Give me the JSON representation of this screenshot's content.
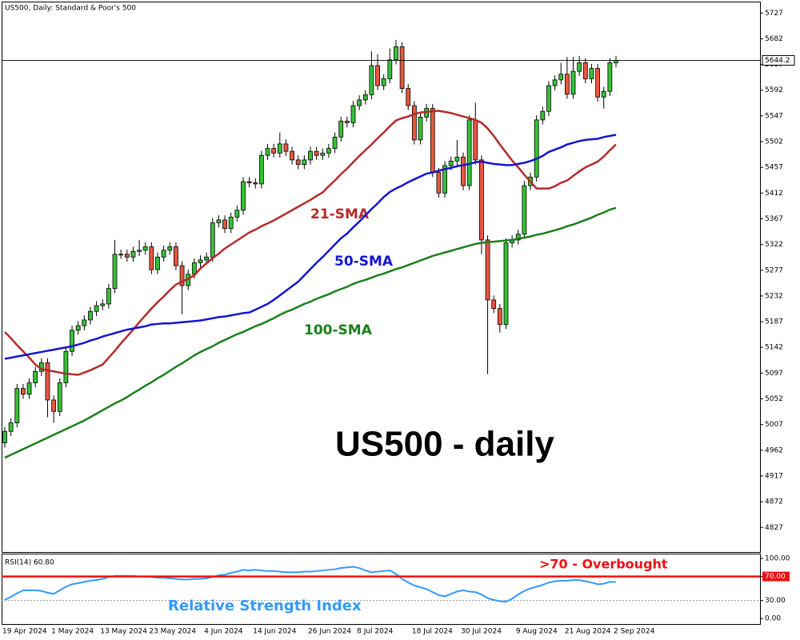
{
  "chart_data": [
    {
      "type": "candlestick",
      "title": "US500, Daily:  Standard & Poor's 500",
      "annotation": "US500 - daily",
      "categories": [
        "19 Apr 2024",
        null,
        null,
        null,
        null,
        null,
        null,
        null,
        "1 May 2024",
        null,
        null,
        null,
        null,
        null,
        null,
        null,
        "13 May 2024",
        null,
        null,
        null,
        null,
        null,
        null,
        null,
        "23 May 2024",
        null,
        null,
        null,
        null,
        null,
        null,
        null,
        null,
        "4 Jun 2024",
        null,
        null,
        null,
        null,
        null,
        null,
        null,
        "14 Jun 2024",
        null,
        null,
        null,
        null,
        null,
        null,
        null,
        null,
        "26 Jun 2024",
        null,
        null,
        null,
        null,
        null,
        null,
        null,
        "8 Jul 2024",
        null,
        null,
        null,
        null,
        null,
        null,
        null,
        null,
        "18 Jul 2024",
        null,
        null,
        null,
        null,
        null,
        null,
        null,
        "30 Jul 2024",
        null,
        null,
        null,
        null,
        null,
        null,
        null,
        null,
        "9 Aug 2024",
        null,
        null,
        null,
        null,
        null,
        null,
        null,
        "21 Aug 2024",
        null,
        null,
        null,
        null,
        null,
        null,
        null,
        "2 Sep 2024"
      ],
      "open": [
        4975,
        4995,
        5010,
        5070,
        5060,
        5080,
        5100,
        5115,
        5050,
        5030,
        5080,
        5135,
        5172,
        5180,
        5190,
        5205,
        5215,
        5218,
        5245,
        5305,
        5305,
        5300,
        5310,
        5312,
        5318,
        5278,
        5300,
        5312,
        5318,
        5285,
        5250,
        5270,
        5290,
        5295,
        5300,
        5360,
        5365,
        5350,
        5370,
        5382,
        5432,
        5430,
        5428,
        5478,
        5490,
        5482,
        5498,
        5485,
        5470,
        5462,
        5470,
        5485,
        5478,
        5482,
        5490,
        5510,
        5538,
        5535,
        5565,
        5575,
        5584,
        5635,
        5600,
        5612,
        5645,
        5668,
        5595,
        5565,
        5505,
        5545,
        5560,
        5448,
        5412,
        5460,
        5468,
        5475,
        5425,
        5540,
        5470,
        5330,
        5225,
        5210,
        5182,
        5325,
        5330,
        5340,
        5425,
        5440,
        5540,
        5555,
        5600,
        5610,
        5620,
        5585,
        5625,
        5640,
        5612,
        5630,
        5580,
        5590,
        5640
      ],
      "high": [
        5003,
        5018,
        5078,
        5078,
        5088,
        5108,
        5123,
        5123,
        5058,
        5088,
        5143,
        5180,
        5188,
        5198,
        5213,
        5223,
        5226,
        5253,
        5330,
        5313,
        5313,
        5318,
        5330,
        5326,
        5326,
        5308,
        5320,
        5326,
        5326,
        5293,
        5278,
        5298,
        5303,
        5308,
        5368,
        5373,
        5373,
        5378,
        5390,
        5440,
        5440,
        5438,
        5486,
        5498,
        5498,
        5518,
        5506,
        5493,
        5478,
        5478,
        5493,
        5493,
        5490,
        5498,
        5518,
        5546,
        5546,
        5573,
        5583,
        5592,
        5660,
        5655,
        5620,
        5665,
        5680,
        5676,
        5603,
        5573,
        5553,
        5568,
        5568,
        5456,
        5468,
        5476,
        5505,
        5483,
        5548,
        5570,
        5478,
        5338,
        5233,
        5218,
        5333,
        5338,
        5348,
        5433,
        5448,
        5548,
        5563,
        5608,
        5618,
        5640,
        5650,
        5650,
        5652,
        5648,
        5638,
        5638,
        5598,
        5648,
        5652
      ],
      "low": [
        4967,
        4987,
        5002,
        5052,
        5052,
        5072,
        5092,
        5020,
        5010,
        5022,
        5072,
        5127,
        5164,
        5172,
        5182,
        5197,
        5207,
        5210,
        5237,
        5297,
        5292,
        5292,
        5302,
        5304,
        5270,
        5270,
        5292,
        5304,
        5277,
        5200,
        5242,
        5262,
        5282,
        5287,
        5292,
        5352,
        5342,
        5342,
        5362,
        5374,
        5422,
        5420,
        5420,
        5470,
        5474,
        5474,
        5477,
        5462,
        5454,
        5454,
        5462,
        5470,
        5470,
        5474,
        5482,
        5502,
        5527,
        5527,
        5557,
        5567,
        5576,
        5592,
        5592,
        5604,
        5637,
        5587,
        5557,
        5497,
        5497,
        5537,
        5440,
        5404,
        5404,
        5452,
        5460,
        5417,
        5417,
        5462,
        5305,
        5095,
        5202,
        5168,
        5174,
        5317,
        5322,
        5332,
        5417,
        5432,
        5532,
        5547,
        5592,
        5602,
        5577,
        5577,
        5617,
        5604,
        5604,
        5572,
        5560,
        5582,
        5632
      ],
      "close": [
        4995,
        5010,
        5070,
        5060,
        5080,
        5100,
        5115,
        5050,
        5030,
        5080,
        5135,
        5172,
        5180,
        5190,
        5205,
        5215,
        5218,
        5245,
        5305,
        5305,
        5300,
        5310,
        5312,
        5318,
        5278,
        5300,
        5312,
        5318,
        5285,
        5250,
        5270,
        5290,
        5295,
        5300,
        5360,
        5365,
        5350,
        5370,
        5382,
        5432,
        5430,
        5428,
        5478,
        5490,
        5482,
        5498,
        5485,
        5470,
        5462,
        5470,
        5485,
        5478,
        5482,
        5490,
        5510,
        5538,
        5535,
        5565,
        5575,
        5584,
        5635,
        5600,
        5612,
        5645,
        5668,
        5595,
        5565,
        5505,
        5545,
        5560,
        5448,
        5412,
        5460,
        5468,
        5475,
        5425,
        5540,
        5470,
        5330,
        5225,
        5210,
        5182,
        5325,
        5330,
        5340,
        5425,
        5440,
        5540,
        5555,
        5600,
        5610,
        5620,
        5585,
        5625,
        5640,
        5612,
        5630,
        5580,
        5590,
        5640,
        5644.2
      ],
      "up_color": "#36c236",
      "down_color": "#e8573e",
      "series": [
        {
          "name": "21-SMA",
          "color": "#b52a2a",
          "values": [
            5169,
            5158,
            5146,
            5135,
            5124,
            5112,
            5104,
            5102,
            5100,
            5098,
            5096,
            5095,
            5094,
            5098,
            5102,
            5107,
            5112,
            5124,
            5136,
            5149,
            5161,
            5173,
            5186,
            5198,
            5210,
            5221,
            5231,
            5242,
            5252,
            5257,
            5262,
            5268,
            5280,
            5289,
            5298,
            5306,
            5315,
            5322,
            5329,
            5336,
            5343,
            5348,
            5354,
            5359,
            5364,
            5370,
            5376,
            5382,
            5388,
            5394,
            5400,
            5407,
            5413,
            5424,
            5434,
            5445,
            5455,
            5466,
            5477,
            5487,
            5497,
            5508,
            5518,
            5529,
            5539,
            5543,
            5546,
            5550,
            5553,
            5554,
            5555,
            5556,
            5554,
            5552,
            5549,
            5546,
            5543,
            5540,
            5535,
            5525,
            5512,
            5497,
            5483,
            5469,
            5457,
            5444,
            5432,
            5420,
            5420,
            5420,
            5424,
            5430,
            5434,
            5442,
            5450,
            5457,
            5462,
            5467,
            5476,
            5487,
            5497
          ]
        },
        {
          "name": "50-SMA",
          "color": "#1515d0",
          "values": [
            5122,
            5124,
            5126,
            5128,
            5130,
            5132,
            5134,
            5136,
            5138,
            5140,
            5142,
            5144,
            5147,
            5150,
            5154,
            5157,
            5161,
            5164,
            5167,
            5170,
            5173,
            5175,
            5177,
            5179,
            5182,
            5183,
            5184,
            5184,
            5185,
            5186,
            5187,
            5188,
            5189,
            5191,
            5193,
            5195,
            5196,
            5198,
            5200,
            5202,
            5203,
            5208,
            5213,
            5218,
            5225,
            5233,
            5241,
            5249,
            5257,
            5268,
            5279,
            5290,
            5300,
            5311,
            5322,
            5333,
            5341,
            5352,
            5362,
            5373,
            5384,
            5394,
            5405,
            5414,
            5420,
            5425,
            5431,
            5436,
            5441,
            5446,
            5448,
            5451,
            5454,
            5456,
            5459,
            5461,
            5463,
            5466,
            5467,
            5465,
            5463,
            5462,
            5461,
            5461,
            5463,
            5465,
            5468,
            5472,
            5477,
            5484,
            5488,
            5492,
            5497,
            5500,
            5503,
            5505,
            5506,
            5507,
            5510,
            5512,
            5514
          ]
        },
        {
          "name": "100-SMA",
          "color": "#1c7f1c",
          "values": [
            4949,
            4954,
            4959,
            4964,
            4969,
            4974,
            4979,
            4984,
            4989,
            4994,
            4999,
            5004,
            5009,
            5014,
            5020,
            5026,
            5032,
            5038,
            5044,
            5049,
            5055,
            5062,
            5068,
            5075,
            5081,
            5088,
            5094,
            5101,
            5108,
            5114,
            5121,
            5128,
            5134,
            5139,
            5144,
            5150,
            5155,
            5160,
            5165,
            5169,
            5174,
            5179,
            5183,
            5188,
            5193,
            5199,
            5204,
            5208,
            5213,
            5218,
            5222,
            5227,
            5231,
            5235,
            5240,
            5244,
            5248,
            5253,
            5257,
            5260,
            5264,
            5268,
            5271,
            5275,
            5279,
            5282,
            5286,
            5290,
            5294,
            5298,
            5302,
            5305,
            5308,
            5311,
            5314,
            5317,
            5320,
            5323,
            5325,
            5326,
            5327,
            5328,
            5329,
            5330,
            5332,
            5334,
            5336,
            5339,
            5341,
            5344,
            5347,
            5350,
            5354,
            5357,
            5361,
            5365,
            5369,
            5374,
            5378,
            5383,
            5386
          ]
        }
      ],
      "ylim": [
        4784,
        5747
      ],
      "yticks": [
        4827,
        4872,
        4917,
        4962,
        5007,
        5052,
        5097,
        5142,
        5187,
        5232,
        5277,
        5322,
        5367,
        5412,
        5457,
        5502,
        5547,
        5592,
        5637,
        5682,
        5727
      ],
      "grid": false
    },
    {
      "type": "line",
      "title": "RSI(14) 60.80",
      "series": [
        {
          "name": "Relative Strength Index",
          "color": "#3399ff",
          "values": [
            31,
            36,
            42,
            47,
            47,
            47,
            46,
            43,
            41,
            47,
            53,
            57,
            59,
            61,
            63,
            64,
            66,
            69,
            71,
            71,
            71,
            71,
            70,
            70,
            69,
            68,
            68,
            67,
            66,
            65,
            65,
            66,
            66,
            67,
            69,
            72,
            73,
            76,
            78,
            81,
            80,
            81,
            80,
            79,
            79,
            78,
            77,
            77,
            77,
            78,
            78,
            79,
            80,
            81,
            82,
            84,
            85,
            86,
            84,
            80,
            77,
            78,
            79,
            80,
            74,
            66,
            60,
            55,
            52,
            49,
            44,
            39,
            37,
            41,
            45,
            47,
            45,
            44,
            40,
            34,
            31,
            29,
            28,
            33,
            40,
            46,
            50,
            53,
            56,
            60,
            62,
            63,
            63,
            64,
            64,
            62,
            60,
            57,
            58,
            61,
            60.8
          ]
        }
      ],
      "overbought": {
        "value": 70,
        "label": ">70 - Overbought",
        "color": "#ee1111"
      },
      "oversold": {
        "value": 30
      },
      "ylim": [
        -9,
        108
      ],
      "yticks": [
        {
          "value": 100,
          "label": "100.00"
        },
        {
          "value": 70,
          "label": "70.00"
        },
        {
          "value": 30,
          "label": "30.00"
        },
        {
          "value": 0,
          "label": "0.00"
        }
      ],
      "grid": false
    }
  ]
}
